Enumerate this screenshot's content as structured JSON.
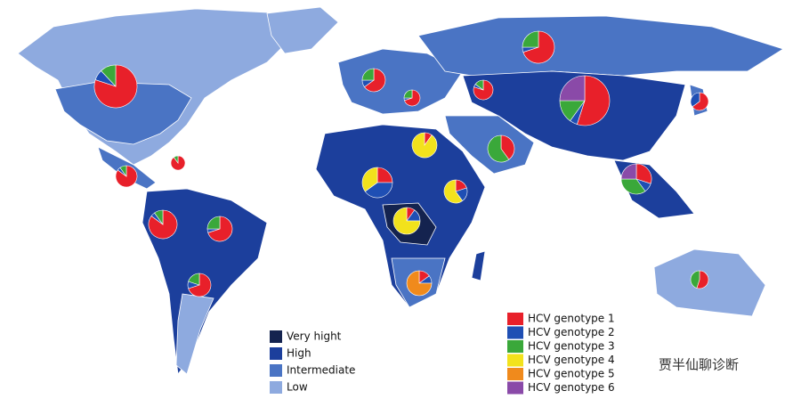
{
  "prevalence_legend": [
    {
      "label": "Very hight",
      "color": "#14234f"
    },
    {
      "label": "High",
      "color": "#1c3f9c"
    },
    {
      "label": "Intermediate",
      "color": "#4a74c4"
    },
    {
      "label": "Low",
      "color": "#8eaadf"
    }
  ],
  "genotype_legend": [
    {
      "label": "HCV genotype 1",
      "color": "#e8202a"
    },
    {
      "label": "HCV genotype 2",
      "color": "#1f4fb4"
    },
    {
      "label": "HCV genotype 3",
      "color": "#3aa83a"
    },
    {
      "label": "HCV genotype 4",
      "color": "#f2e21c"
    },
    {
      "label": "HCV genotype 5",
      "color": "#f08a1c"
    },
    {
      "label": "HCV genotype 6",
      "color": "#8a4aa8"
    }
  ],
  "pies": [
    {
      "values": [
        80,
        8,
        12,
        0,
        0,
        0
      ]
    },
    {
      "values": [
        90,
        0,
        10,
        0,
        0,
        0
      ]
    },
    {
      "values": [
        85,
        5,
        10,
        0,
        0,
        0
      ]
    },
    {
      "values": [
        85,
        5,
        10,
        0,
        0,
        0
      ]
    },
    {
      "values": [
        70,
        5,
        25,
        0,
        0,
        0
      ]
    },
    {
      "values": [
        70,
        10,
        20,
        0,
        0,
        0
      ]
    },
    {
      "values": [
        65,
        10,
        25,
        0,
        0,
        0
      ]
    },
    {
      "values": [
        70,
        5,
        25,
        0,
        0,
        0
      ]
    },
    {
      "values": [
        70,
        5,
        25,
        0,
        0,
        0
      ]
    },
    {
      "values": [
        80,
        5,
        15,
        0,
        0,
        0
      ]
    },
    {
      "values": [
        55,
        5,
        15,
        0,
        0,
        25
      ]
    },
    {
      "values": [
        65,
        35,
        0,
        0,
        0,
        0
      ]
    },
    {
      "values": [
        10,
        0,
        0,
        90,
        0,
        0
      ]
    },
    {
      "values": [
        40,
        0,
        60,
        0,
        0,
        0
      ]
    },
    {
      "values": [
        25,
        40,
        0,
        35,
        0,
        0
      ]
    },
    {
      "values": [
        20,
        20,
        0,
        60,
        0,
        0
      ]
    },
    {
      "values": [
        10,
        15,
        0,
        75,
        0,
        0
      ]
    },
    {
      "values": [
        15,
        10,
        0,
        0,
        75,
        0
      ]
    },
    {
      "values": [
        30,
        10,
        35,
        0,
        0,
        25
      ]
    },
    {
      "values": [
        55,
        0,
        45,
        0,
        0,
        0
      ]
    }
  ],
  "watermark": "贾半仙聊诊断"
}
